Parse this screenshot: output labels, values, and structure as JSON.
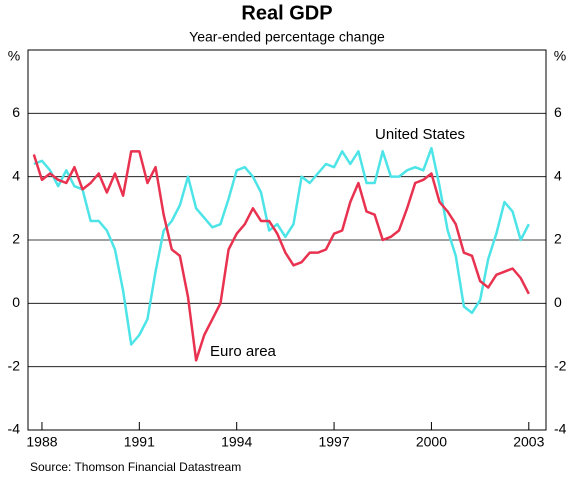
{
  "chart_data": {
    "type": "line",
    "title": "Real GDP",
    "subtitle": "Year-ended percentage change",
    "y_label": "%",
    "y2_label": "%",
    "source": "Source: Thomson Financial Datastream",
    "x": [
      1987.75,
      1988,
      1988.25,
      1988.5,
      1988.75,
      1989,
      1989.25,
      1989.5,
      1989.75,
      1990,
      1990.25,
      1990.5,
      1990.75,
      1991,
      1991.25,
      1991.5,
      1991.75,
      1992,
      1992.25,
      1992.5,
      1992.75,
      1993,
      1993.25,
      1993.5,
      1993.75,
      1994,
      1994.25,
      1994.5,
      1994.75,
      1995,
      1995.25,
      1995.5,
      1995.75,
      1996,
      1996.25,
      1996.5,
      1996.75,
      1997,
      1997.25,
      1997.5,
      1997.75,
      1998,
      1998.25,
      1998.5,
      1998.75,
      1999,
      1999.25,
      1999.5,
      1999.75,
      2000,
      2000.25,
      2000.5,
      2000.75,
      2001,
      2001.25,
      2001.5,
      2001.75,
      2002,
      2002.25,
      2002.5,
      2002.75,
      2003
    ],
    "series": [
      {
        "name": "United States",
        "color": "#4de4e8",
        "values": [
          4.4,
          4.5,
          4.2,
          3.7,
          4.2,
          3.7,
          3.6,
          2.6,
          2.6,
          2.3,
          1.7,
          0.4,
          -1.3,
          -1.0,
          -0.5,
          1.0,
          2.3,
          2.6,
          3.1,
          4.0,
          3.0,
          2.7,
          2.4,
          2.5,
          3.3,
          4.2,
          4.3,
          4.0,
          3.5,
          2.3,
          2.5,
          2.1,
          2.5,
          4.0,
          3.8,
          4.1,
          4.4,
          4.3,
          4.8,
          4.4,
          4.8,
          3.8,
          3.8,
          4.8,
          4.0,
          4.0,
          4.2,
          4.3,
          4.2,
          4.9,
          3.7,
          2.3,
          1.5,
          -0.1,
          -0.3,
          0.1,
          1.4,
          2.2,
          3.2,
          2.9,
          2.0,
          2.5
        ]
      },
      {
        "name": "Euro area",
        "color": "#e8324f",
        "values": [
          4.7,
          3.9,
          4.1,
          3.9,
          3.8,
          4.3,
          3.6,
          3.8,
          4.1,
          3.5,
          4.1,
          3.4,
          4.8,
          4.8,
          3.8,
          4.3,
          2.8,
          1.7,
          1.5,
          0.2,
          -1.8,
          -1.0,
          -0.5,
          0.0,
          1.7,
          2.2,
          2.5,
          3.0,
          2.6,
          2.6,
          2.2,
          1.6,
          1.2,
          1.3,
          1.6,
          1.6,
          1.7,
          2.2,
          2.3,
          3.2,
          3.8,
          2.9,
          2.8,
          2.0,
          2.1,
          2.3,
          3.0,
          3.8,
          3.9,
          4.1,
          3.2,
          2.9,
          2.5,
          1.6,
          1.5,
          0.7,
          0.5,
          0.9,
          1.0,
          1.1,
          0.8,
          0.3
        ]
      }
    ],
    "xlim": [
      1987.57,
      2003.53
    ],
    "xticks": [
      1988,
      1991,
      1994,
      1997,
      2000,
      2003
    ],
    "ylim": [
      -4,
      8
    ],
    "yticks": [
      -4,
      -2,
      0,
      2,
      4,
      6
    ],
    "y2lim": [
      -4,
      8
    ],
    "y2ticks": [
      -4,
      -2,
      0,
      2,
      4,
      6
    ],
    "grid": true
  }
}
